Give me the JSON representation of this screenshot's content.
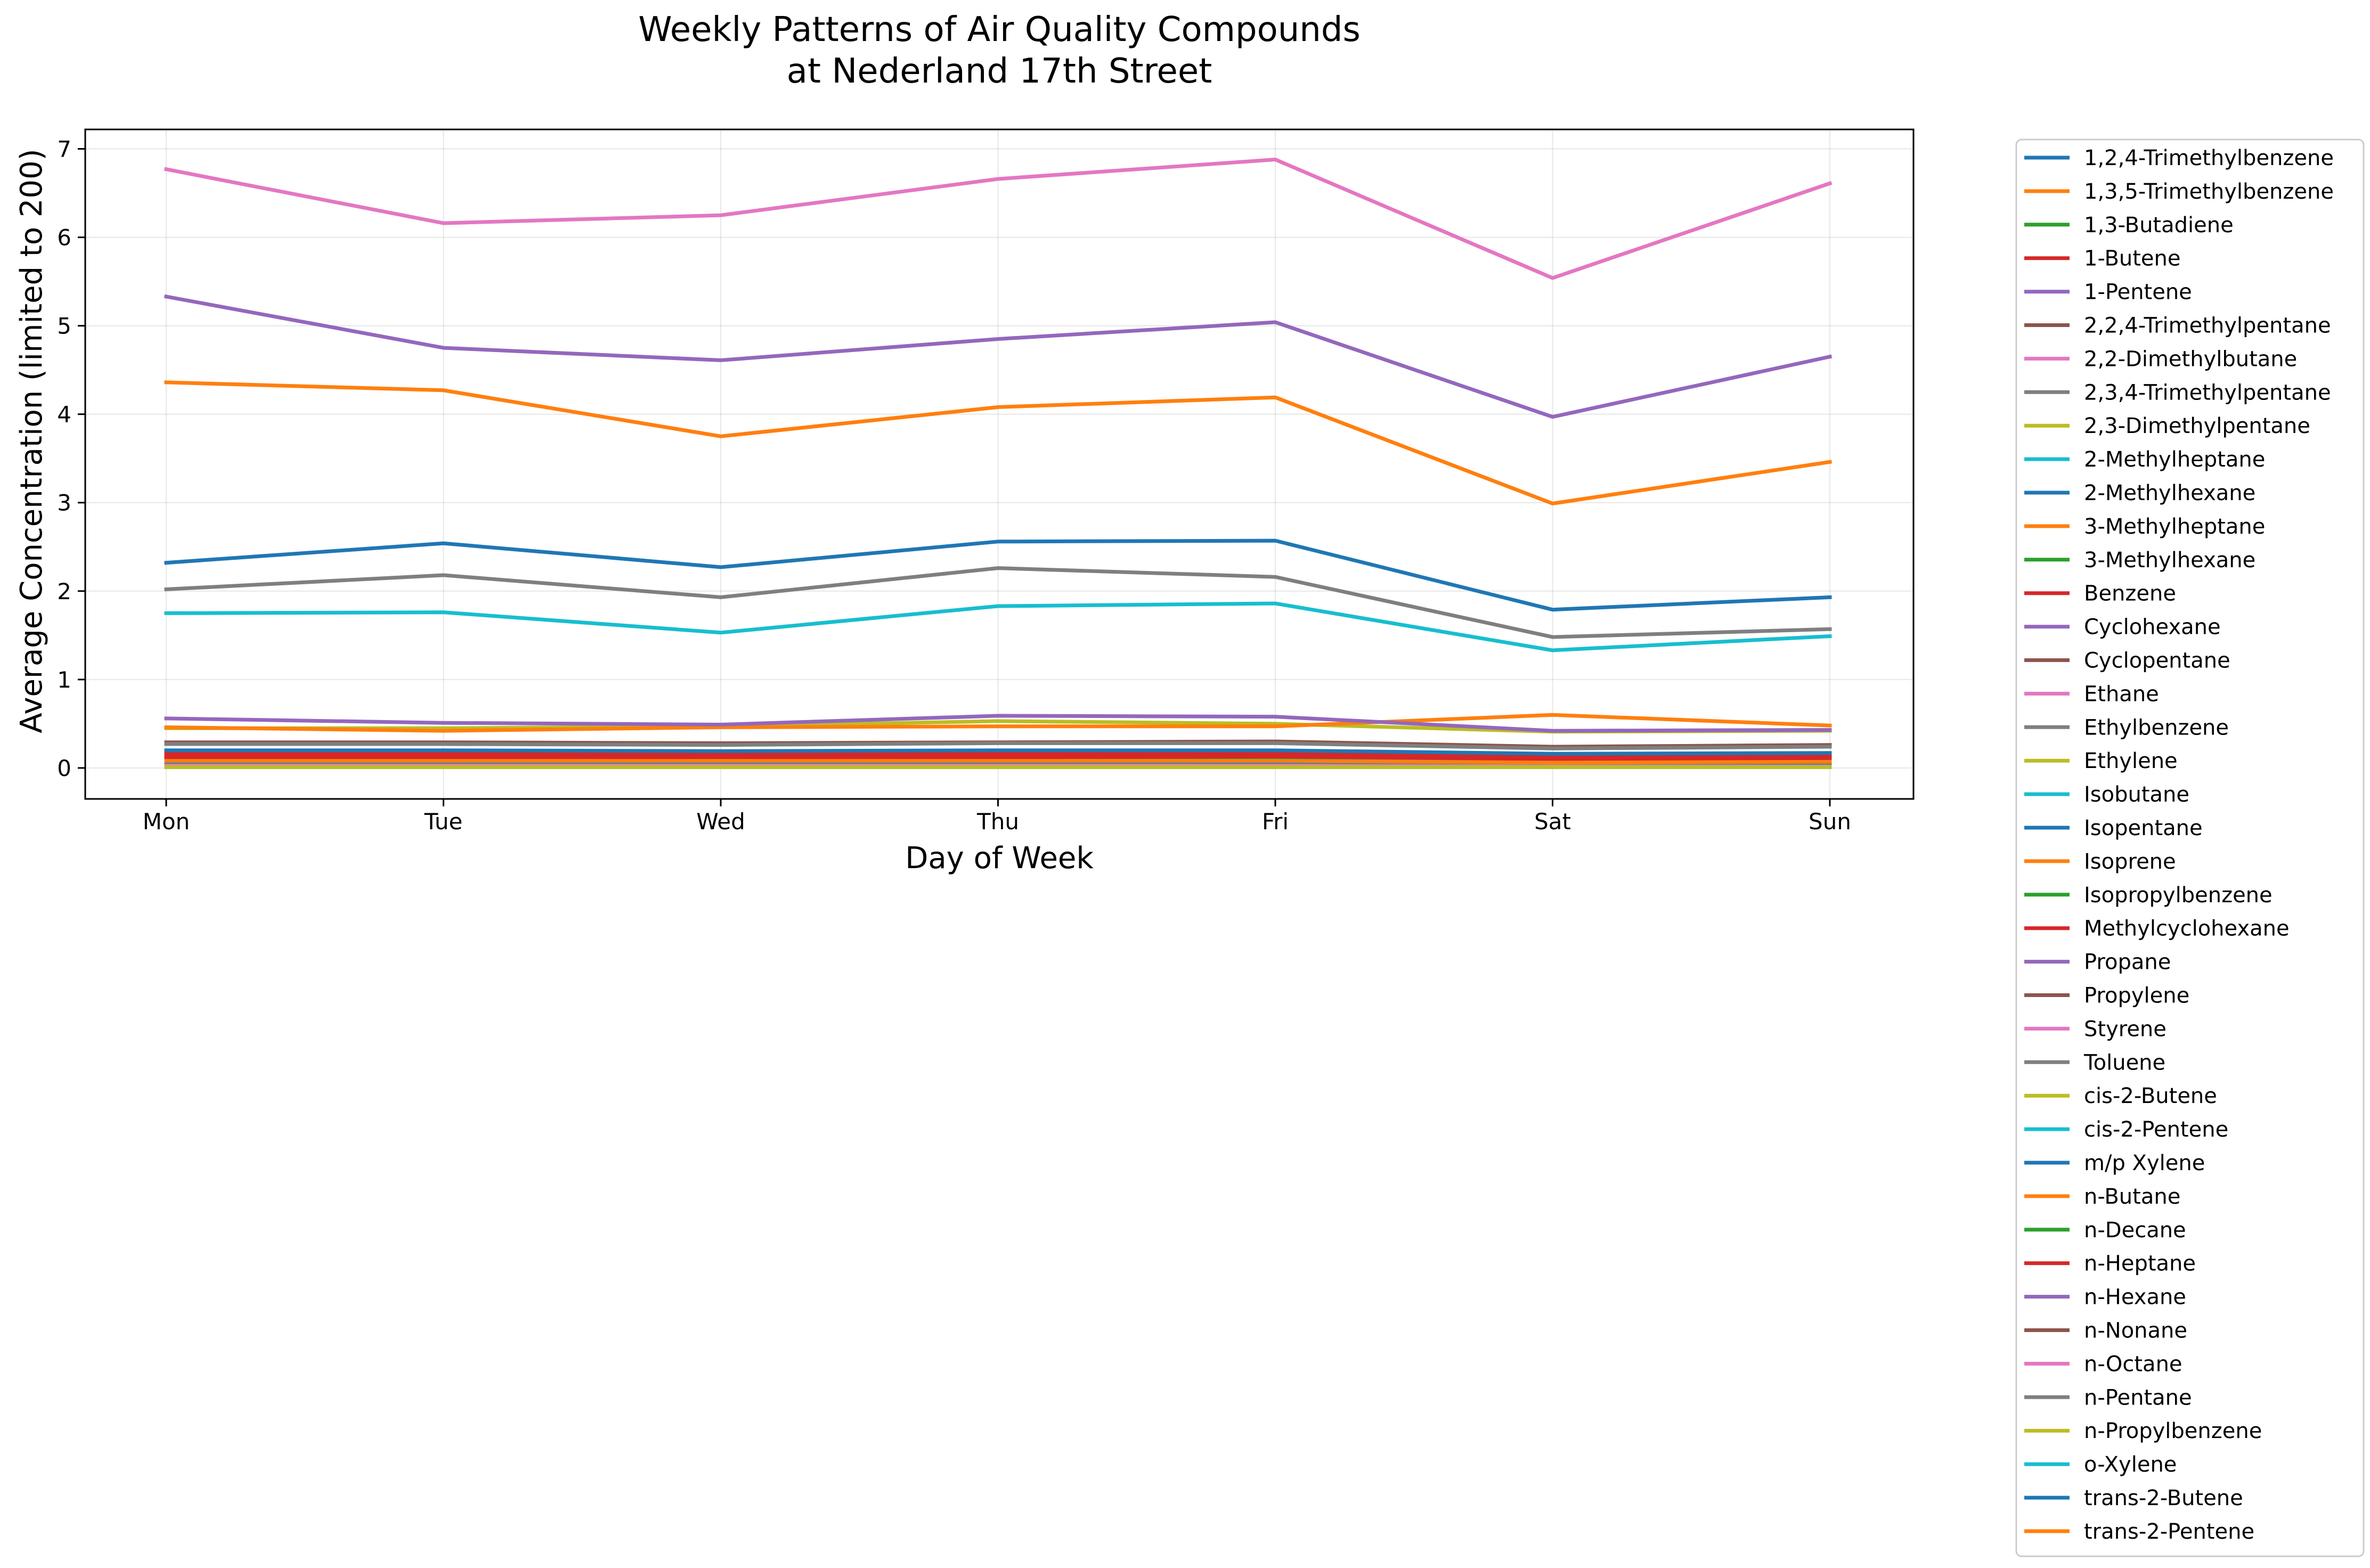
{
  "chart_data": {
    "type": "line",
    "title": "Weekly Patterns of Air Quality Compounds",
    "subtitle": "at Nederland 17th Street",
    "xlabel": "Day of Week",
    "ylabel": "Average Concentration (limited to 200)",
    "categories": [
      "Mon",
      "Tue",
      "Wed",
      "Thu",
      "Fri",
      "Sat",
      "Sun"
    ],
    "ylim": [
      -0.35,
      7.22
    ],
    "yticks": [
      0,
      1,
      2,
      3,
      4,
      5,
      6,
      7
    ],
    "grid": true,
    "legend_position": "outside right",
    "series": [
      {
        "name": "1,2,4-Trimethylbenzene",
        "color": "#1f77b4",
        "values": [
          0.06,
          0.06,
          0.06,
          0.06,
          0.06,
          0.05,
          0.05
        ]
      },
      {
        "name": "1,3,5-Trimethylbenzene",
        "color": "#ff7f0e",
        "values": [
          0.02,
          0.02,
          0.02,
          0.02,
          0.02,
          0.02,
          0.02
        ]
      },
      {
        "name": "1,3-Butadiene",
        "color": "#2ca02c",
        "values": [
          0.03,
          0.03,
          0.03,
          0.03,
          0.03,
          0.02,
          0.02
        ]
      },
      {
        "name": "1-Butene",
        "color": "#d62728",
        "values": [
          0.1,
          0.1,
          0.1,
          0.1,
          0.1,
          0.08,
          0.09
        ]
      },
      {
        "name": "1-Pentene",
        "color": "#9467bd",
        "values": [
          0.05,
          0.05,
          0.05,
          0.05,
          0.05,
          0.04,
          0.04
        ]
      },
      {
        "name": "2,2,4-Trimethylpentane",
        "color": "#8c564b",
        "values": [
          0.15,
          0.15,
          0.14,
          0.15,
          0.15,
          0.12,
          0.13
        ]
      },
      {
        "name": "2,2-Dimethylbutane",
        "color": "#e377c2",
        "values": [
          0.08,
          0.08,
          0.08,
          0.08,
          0.08,
          0.06,
          0.07
        ]
      },
      {
        "name": "2,3,4-Trimethylpentane",
        "color": "#7f7f7f",
        "values": [
          0.05,
          0.05,
          0.05,
          0.05,
          0.05,
          0.04,
          0.04
        ]
      },
      {
        "name": "2,3-Dimethylpentane",
        "color": "#bcbd22",
        "values": [
          0.06,
          0.06,
          0.06,
          0.06,
          0.06,
          0.05,
          0.05
        ]
      },
      {
        "name": "2-Methylheptane",
        "color": "#17becf",
        "values": [
          0.04,
          0.04,
          0.04,
          0.04,
          0.04,
          0.03,
          0.03
        ]
      },
      {
        "name": "2-Methylhexane",
        "color": "#1f77b4",
        "values": [
          0.09,
          0.09,
          0.09,
          0.09,
          0.09,
          0.07,
          0.08
        ]
      },
      {
        "name": "3-Methylheptane",
        "color": "#ff7f0e",
        "values": [
          0.03,
          0.03,
          0.03,
          0.03,
          0.03,
          0.02,
          0.02
        ]
      },
      {
        "name": "3-Methylhexane",
        "color": "#2ca02c",
        "values": [
          0.1,
          0.1,
          0.1,
          0.1,
          0.1,
          0.08,
          0.09
        ]
      },
      {
        "name": "Benzene",
        "color": "#d62728",
        "values": [
          0.18,
          0.18,
          0.17,
          0.18,
          0.18,
          0.15,
          0.16
        ]
      },
      {
        "name": "Cyclohexane",
        "color": "#9467bd",
        "values": [
          0.06,
          0.06,
          0.06,
          0.06,
          0.06,
          0.05,
          0.05
        ]
      },
      {
        "name": "Cyclopentane",
        "color": "#8c564b",
        "values": [
          0.04,
          0.04,
          0.04,
          0.04,
          0.04,
          0.03,
          0.03
        ]
      },
      {
        "name": "Ethane",
        "color": "#e377c2",
        "values": [
          6.77,
          6.16,
          6.25,
          6.66,
          6.88,
          5.54,
          6.61
        ]
      },
      {
        "name": "Ethylbenzene",
        "color": "#7f7f7f",
        "values": [
          0.08,
          0.08,
          0.08,
          0.08,
          0.08,
          0.07,
          0.07
        ]
      },
      {
        "name": "Ethylene",
        "color": "#bcbd22",
        "values": [
          0.45,
          0.45,
          0.47,
          0.53,
          0.5,
          0.41,
          0.42
        ]
      },
      {
        "name": "Isobutane",
        "color": "#17becf",
        "values": [
          1.75,
          1.76,
          1.53,
          1.83,
          1.86,
          1.33,
          1.49
        ]
      },
      {
        "name": "Isopentane",
        "color": "#1f77b4",
        "values": [
          2.32,
          2.54,
          2.27,
          2.56,
          2.57,
          1.79,
          1.93
        ]
      },
      {
        "name": "Isoprene",
        "color": "#ff7f0e",
        "values": [
          0.46,
          0.42,
          0.46,
          0.47,
          0.47,
          0.6,
          0.48
        ]
      },
      {
        "name": "Isopropylbenzene",
        "color": "#2ca02c",
        "values": [
          0.01,
          0.01,
          0.01,
          0.01,
          0.01,
          0.01,
          0.01
        ]
      },
      {
        "name": "Methylcyclohexane",
        "color": "#d62728",
        "values": [
          0.14,
          0.14,
          0.13,
          0.14,
          0.14,
          0.11,
          0.12
        ]
      },
      {
        "name": "Propane",
        "color": "#9467bd",
        "values": [
          5.33,
          4.75,
          4.61,
          4.85,
          5.04,
          3.97,
          4.65
        ]
      },
      {
        "name": "Propylene",
        "color": "#8c564b",
        "values": [
          0.29,
          0.29,
          0.28,
          0.29,
          0.3,
          0.24,
          0.26
        ]
      },
      {
        "name": "Styrene",
        "color": "#e377c2",
        "values": [
          0.03,
          0.03,
          0.03,
          0.03,
          0.03,
          0.02,
          0.02
        ]
      },
      {
        "name": "Toluene",
        "color": "#7f7f7f",
        "values": [
          0.27,
          0.27,
          0.26,
          0.28,
          0.28,
          0.22,
          0.24
        ]
      },
      {
        "name": "cis-2-Butene",
        "color": "#bcbd22",
        "values": [
          0.06,
          0.06,
          0.06,
          0.06,
          0.06,
          0.05,
          0.05
        ]
      },
      {
        "name": "cis-2-Pentene",
        "color": "#17becf",
        "values": [
          0.05,
          0.05,
          0.05,
          0.05,
          0.05,
          0.04,
          0.04
        ]
      },
      {
        "name": "m/p Xylene",
        "color": "#1f77b4",
        "values": [
          0.2,
          0.2,
          0.19,
          0.2,
          0.2,
          0.16,
          0.17
        ]
      },
      {
        "name": "n-Butane",
        "color": "#ff7f0e",
        "values": [
          4.36,
          4.27,
          3.75,
          4.08,
          4.19,
          2.99,
          3.46
        ]
      },
      {
        "name": "n-Decane",
        "color": "#2ca02c",
        "values": [
          0.02,
          0.02,
          0.02,
          0.02,
          0.02,
          0.02,
          0.02
        ]
      },
      {
        "name": "n-Heptane",
        "color": "#d62728",
        "values": [
          0.12,
          0.12,
          0.12,
          0.12,
          0.13,
          0.1,
          0.11
        ]
      },
      {
        "name": "n-Hexane",
        "color": "#9467bd",
        "values": [
          0.56,
          0.51,
          0.49,
          0.59,
          0.58,
          0.42,
          0.43
        ]
      },
      {
        "name": "n-Nonane",
        "color": "#8c564b",
        "values": [
          0.03,
          0.03,
          0.03,
          0.03,
          0.03,
          0.02,
          0.02
        ]
      },
      {
        "name": "n-Octane",
        "color": "#e377c2",
        "values": [
          0.04,
          0.04,
          0.04,
          0.04,
          0.04,
          0.03,
          0.03
        ]
      },
      {
        "name": "n-Pentane",
        "color": "#7f7f7f",
        "values": [
          2.02,
          2.18,
          1.93,
          2.26,
          2.16,
          1.48,
          1.57
        ]
      },
      {
        "name": "n-Propylbenzene",
        "color": "#bcbd22",
        "values": [
          0.01,
          0.01,
          0.01,
          0.01,
          0.01,
          0.01,
          0.01
        ]
      },
      {
        "name": "o-Xylene",
        "color": "#17becf",
        "values": [
          0.07,
          0.07,
          0.07,
          0.07,
          0.07,
          0.06,
          0.06
        ]
      },
      {
        "name": "trans-2-Butene",
        "color": "#1f77b4",
        "values": [
          0.07,
          0.07,
          0.07,
          0.07,
          0.07,
          0.06,
          0.06
        ]
      },
      {
        "name": "trans-2-Pentene",
        "color": "#ff7f0e",
        "values": [
          0.08,
          0.08,
          0.08,
          0.08,
          0.08,
          0.06,
          0.07
        ]
      }
    ]
  }
}
